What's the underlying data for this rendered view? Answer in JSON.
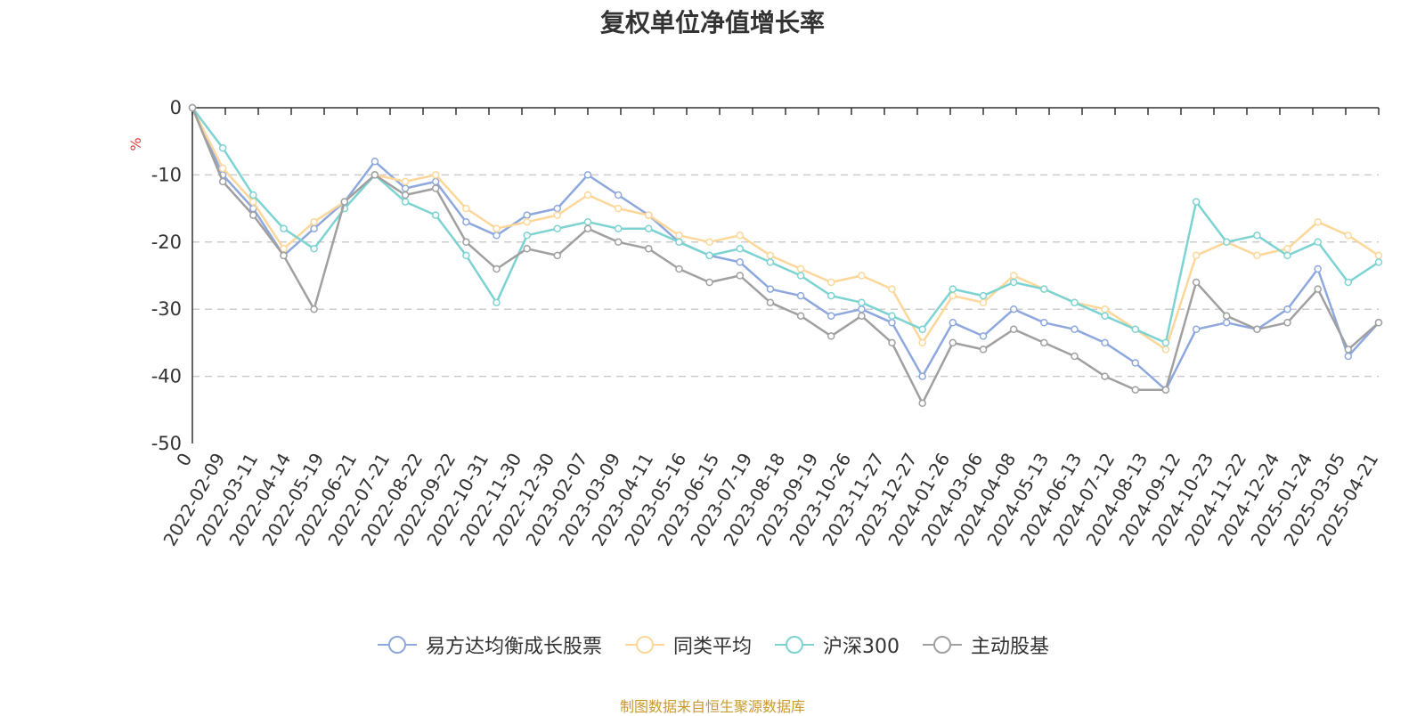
{
  "chart_data": {
    "type": "line",
    "title": "复权单位净值增长率",
    "ylabel": "%",
    "ylim": [
      -50,
      0
    ],
    "yticks": [
      0,
      -10,
      -20,
      -30,
      -40,
      -50
    ],
    "grid": true,
    "legend_position": "bottom",
    "x_tick_labels": [
      "0",
      "2022-02-09",
      "2022-03-11",
      "2022-04-14",
      "2022-05-19",
      "2022-06-21",
      "2022-07-21",
      "2022-08-22",
      "2022-09-22",
      "2022-10-31",
      "2022-11-30",
      "2022-12-30",
      "2023-02-07",
      "2023-03-09",
      "2023-04-11",
      "2023-05-16",
      "2023-06-15",
      "2023-07-19",
      "2023-08-18",
      "2023-09-19",
      "2023-10-26",
      "2023-11-27",
      "2023-12-27",
      "2024-01-26",
      "2024-03-06",
      "2024-04-08",
      "2024-05-13",
      "2024-06-13",
      "2024-07-12",
      "2024-08-13",
      "2024-09-12",
      "2024-10-23",
      "2024-11-22",
      "2024-12-24",
      "2025-01-24",
      "2025-03-05",
      "2025-04-21"
    ],
    "series": [
      {
        "name": "易方达均衡成长股票",
        "color": "#8ea8dd",
        "values": [
          0,
          -10,
          -15,
          -22,
          -18,
          -14,
          -8,
          -12,
          -11,
          -17,
          -19,
          -16,
          -15,
          -10,
          -13,
          -16,
          -20,
          -22,
          -23,
          -27,
          -28,
          -31,
          -30,
          -32,
          -40,
          -32,
          -34,
          -30,
          -32,
          -33,
          -35,
          -38,
          -42,
          -33,
          -32,
          -33,
          -30,
          -24,
          -37,
          -32
        ]
      },
      {
        "name": "同类平均",
        "color": "#fdd79a",
        "values": [
          0,
          -9,
          -14,
          -21,
          -17,
          -14,
          -10,
          -11,
          -10,
          -15,
          -18,
          -17,
          -16,
          -13,
          -15,
          -16,
          -19,
          -20,
          -19,
          -22,
          -24,
          -26,
          -25,
          -27,
          -35,
          -28,
          -29,
          -25,
          -27,
          -29,
          -30,
          -33,
          -36,
          -22,
          -20,
          -22,
          -21,
          -17,
          -19,
          -22
        ]
      },
      {
        "name": "沪深300",
        "color": "#7dd3d2",
        "values": [
          0,
          -6,
          -13,
          -18,
          -21,
          -15,
          -10,
          -14,
          -16,
          -22,
          -29,
          -19,
          -18,
          -17,
          -18,
          -18,
          -20,
          -22,
          -21,
          -23,
          -25,
          -28,
          -29,
          -31,
          -33,
          -27,
          -28,
          -26,
          -27,
          -29,
          -31,
          -33,
          -35,
          -14,
          -20,
          -19,
          -22,
          -20,
          -26,
          -23
        ]
      },
      {
        "name": "主动股基",
        "color": "#a0a0a0",
        "values": [
          0,
          -11,
          -16,
          -22,
          -30,
          -14,
          -10,
          -13,
          -12,
          -20,
          -24,
          -21,
          -22,
          -18,
          -20,
          -21,
          -24,
          -26,
          -25,
          -29,
          -31,
          -34,
          -31,
          -35,
          -44,
          -35,
          -36,
          -33,
          -35,
          -37,
          -40,
          -42,
          -42,
          -26,
          -31,
          -33,
          -32,
          -27,
          -36,
          -32
        ]
      }
    ],
    "source_note": "制图数据来自恒生聚源数据库"
  }
}
